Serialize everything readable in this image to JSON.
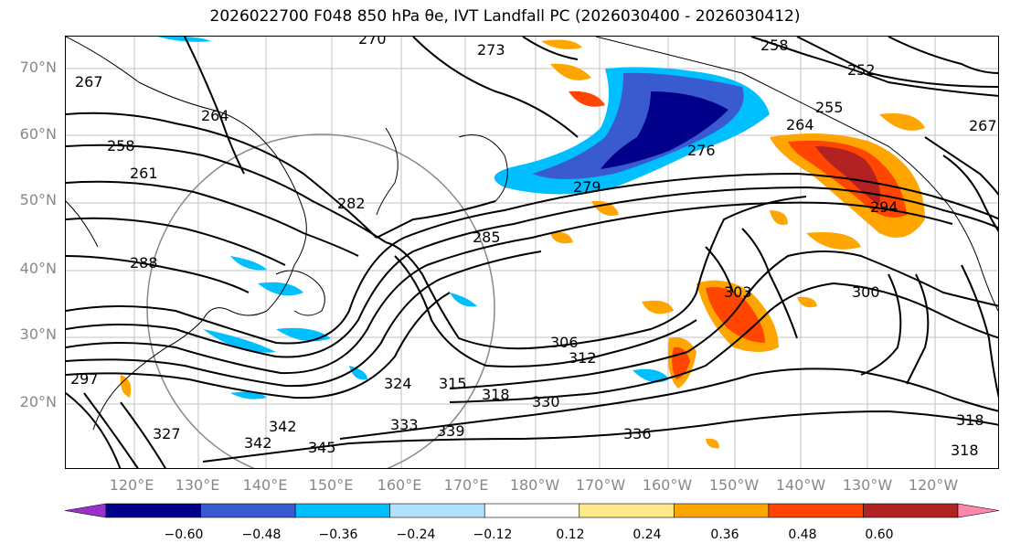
{
  "title": "2026022700 F048 850 hPa θe, IVT Landfall PC (2026030400 - 2026030412)",
  "lat_labels": [
    "70°N",
    "60°N",
    "50°N",
    "40°N",
    "30°N",
    "20°N"
  ],
  "lon_labels": [
    "120°E",
    "130°E",
    "140°E",
    "150°E",
    "160°E",
    "170°E",
    "180°W",
    "170°W",
    "160°W",
    "150°W",
    "140°W",
    "130°W",
    "120°W"
  ],
  "contour_labels": [
    "270",
    "273",
    "267",
    "264",
    "258",
    "261",
    "282",
    "285",
    "279",
    "276",
    "288",
    "306",
    "312",
    "324",
    "315",
    "318",
    "330",
    "333",
    "339",
    "342",
    "345",
    "336",
    "252",
    "255",
    "258",
    "264",
    "267",
    "294",
    "303",
    "300",
    "318",
    "318",
    "327",
    "297",
    "342"
  ],
  "colorbar": {
    "ticks": [
      "−0.60",
      "−0.48",
      "−0.36",
      "−0.24",
      "−0.12",
      "0.12",
      "0.24",
      "0.36",
      "0.48",
      "0.60"
    ],
    "colors": [
      "#9932cc",
      "#00008b",
      "#3a5bd0",
      "#00bfff",
      "#b0e2ff",
      "#ffffff",
      "#ffe98a",
      "#ffa500",
      "#ff4500",
      "#b22222",
      "#ff88aa"
    ]
  }
}
